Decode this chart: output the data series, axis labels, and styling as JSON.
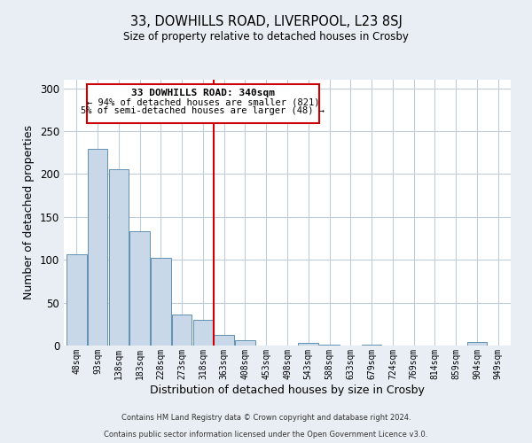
{
  "title1": "33, DOWHILLS ROAD, LIVERPOOL, L23 8SJ",
  "title2": "Size of property relative to detached houses in Crosby",
  "xlabel": "Distribution of detached houses by size in Crosby",
  "ylabel": "Number of detached properties",
  "bar_labels": [
    "48sqm",
    "93sqm",
    "138sqm",
    "183sqm",
    "228sqm",
    "273sqm",
    "318sqm",
    "363sqm",
    "408sqm",
    "453sqm",
    "498sqm",
    "543sqm",
    "588sqm",
    "633sqm",
    "679sqm",
    "724sqm",
    "769sqm",
    "814sqm",
    "859sqm",
    "904sqm",
    "949sqm"
  ],
  "bar_values": [
    106,
    229,
    206,
    133,
    102,
    36,
    30,
    12,
    6,
    0,
    0,
    3,
    1,
    0,
    1,
    0,
    0,
    0,
    0,
    4,
    0
  ],
  "bar_color": "#c8d8e8",
  "bar_edge_color": "#6090b0",
  "vline_x": 6.5,
  "vline_color": "#cc0000",
  "ylim": [
    0,
    310
  ],
  "yticks": [
    0,
    50,
    100,
    150,
    200,
    250,
    300
  ],
  "annotation_title": "33 DOWHILLS ROAD: 340sqm",
  "annotation_line1": "← 94% of detached houses are smaller (821)",
  "annotation_line2": "5% of semi-detached houses are larger (48) →",
  "annotation_box_color": "#ffffff",
  "annotation_box_edge": "#cc0000",
  "footer1": "Contains HM Land Registry data © Crown copyright and database right 2024.",
  "footer2": "Contains public sector information licensed under the Open Government Licence v3.0.",
  "bg_color": "#e8eef4",
  "plot_bg_color": "#ffffff",
  "grid_color": "#c0ccd8"
}
